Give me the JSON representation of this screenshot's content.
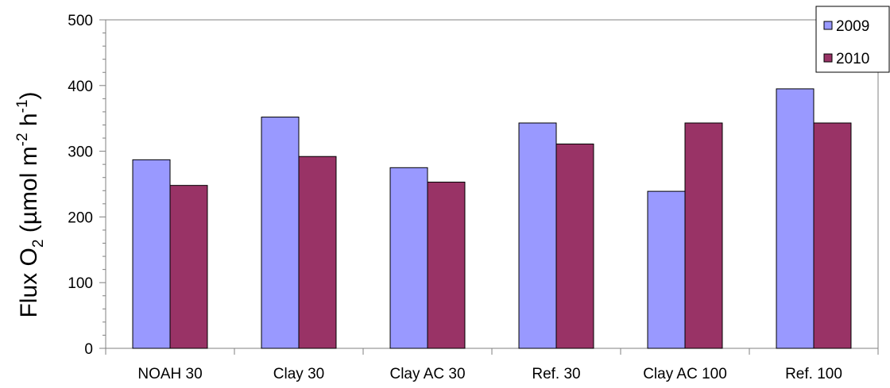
{
  "chart_data": {
    "type": "bar",
    "title": "",
    "xlabel": "",
    "ylabel": {
      "text_main": "Flux O",
      "o_sub": "2",
      "text_unit_open": " (µmol m",
      "m_sup": "-2",
      "text_h": " h",
      "h_sup": "-1",
      "text_close": ")"
    },
    "ylim": [
      0,
      500
    ],
    "yticks": [
      0,
      100,
      200,
      300,
      400,
      500
    ],
    "ytick_labels": [
      "0",
      "100",
      "200",
      "300",
      "400",
      "500"
    ],
    "categories": [
      "NOAH 30",
      "Clay 30",
      "Clay AC 30",
      "Ref. 30",
      "Clay AC 100",
      "Ref. 100"
    ],
    "series": [
      {
        "name": "2009",
        "color": "#9999ff",
        "values": [
          287,
          352,
          275,
          343,
          239,
          395
        ]
      },
      {
        "name": "2010",
        "color": "#993366",
        "values": [
          248,
          292,
          253,
          311,
          343,
          343
        ]
      }
    ],
    "grid": false,
    "legend": "top-right"
  }
}
